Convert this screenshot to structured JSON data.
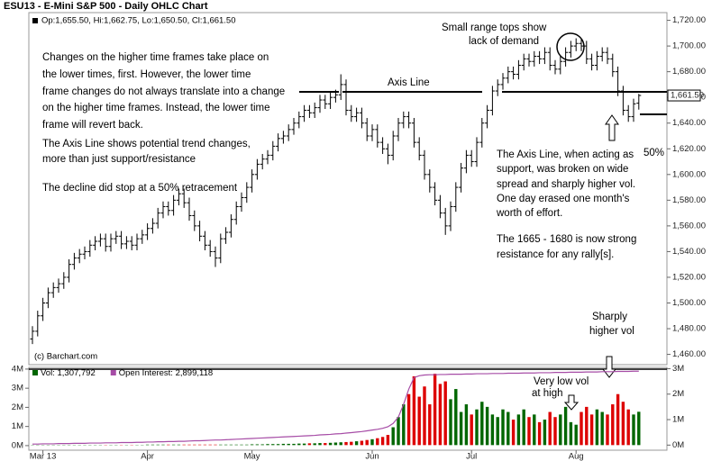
{
  "chart_data": [
    {
      "type": "ohlc",
      "title": "ESU13 - E-Mini S&P 500 - Daily OHLC Chart",
      "legend": "Op:1,655.50, Hi:1,662.75, Lo:1,650.50, Cl:1,661.50",
      "source": "(c) Barchart.com",
      "last_price_label": "1,661.50",
      "color": "#000000",
      "grid": false,
      "categories": [
        null,
        null,
        "Mar 13",
        null,
        null,
        null,
        null,
        null,
        null,
        null,
        null,
        null,
        null,
        null,
        null,
        null,
        null,
        null,
        null,
        null,
        null,
        null,
        "Apr",
        null,
        null,
        null,
        null,
        null,
        null,
        null,
        null,
        null,
        null,
        null,
        null,
        null,
        null,
        null,
        null,
        null,
        null,
        null,
        "May",
        null,
        null,
        null,
        null,
        null,
        null,
        null,
        null,
        null,
        null,
        null,
        null,
        null,
        null,
        null,
        null,
        null,
        null,
        null,
        null,
        null,
        null,
        "Jun",
        null,
        null,
        null,
        null,
        null,
        null,
        null,
        null,
        null,
        null,
        null,
        null,
        null,
        null,
        null,
        null,
        null,
        null,
        "Jul",
        null,
        null,
        null,
        null,
        null,
        null,
        null,
        null,
        null,
        null,
        null,
        null,
        null,
        null,
        null,
        null,
        null,
        null,
        null,
        "Aug",
        null,
        null,
        null,
        null,
        null,
        null,
        null,
        null,
        null,
        null,
        null,
        null,
        null,
        null
      ],
      "ohlc": [
        [
          1472,
          1482,
          1468,
          1478
        ],
        [
          1478,
          1494,
          1474,
          1490
        ],
        [
          1490,
          1504,
          1486,
          1500
        ],
        [
          1500,
          1512,
          1496,
          1508
        ],
        [
          1508,
          1516,
          1504,
          1512
        ],
        [
          1512,
          1519,
          1508,
          1515
        ],
        [
          1515,
          1524,
          1511,
          1520
        ],
        [
          1520,
          1534,
          1516,
          1530
        ],
        [
          1530,
          1539,
          1526,
          1535
        ],
        [
          1535,
          1542,
          1531,
          1538
        ],
        [
          1538,
          1544,
          1534,
          1540
        ],
        [
          1540,
          1549,
          1536,
          1545
        ],
        [
          1545,
          1552,
          1541,
          1548
        ],
        [
          1548,
          1554,
          1544,
          1550
        ],
        [
          1550,
          1554,
          1540,
          1544
        ],
        [
          1544,
          1554,
          1540,
          1550
        ],
        [
          1550,
          1556,
          1546,
          1552
        ],
        [
          1552,
          1556,
          1542,
          1546
        ],
        [
          1546,
          1552,
          1542,
          1548
        ],
        [
          1548,
          1552,
          1541,
          1545
        ],
        [
          1545,
          1554,
          1541,
          1550
        ],
        [
          1550,
          1557,
          1546,
          1553
        ],
        [
          1553,
          1562,
          1549,
          1558
        ],
        [
          1558,
          1566,
          1554,
          1562
        ],
        [
          1562,
          1574,
          1558,
          1570
        ],
        [
          1570,
          1579,
          1566,
          1575
        ],
        [
          1575,
          1579,
          1568,
          1572
        ],
        [
          1572,
          1584,
          1568,
          1580
        ],
        [
          1580,
          1589,
          1576,
          1585
        ],
        [
          1585,
          1589,
          1574,
          1578
        ],
        [
          1578,
          1582,
          1564,
          1568
        ],
        [
          1568,
          1572,
          1556,
          1560
        ],
        [
          1560,
          1564,
          1548,
          1552
        ],
        [
          1552,
          1556,
          1541,
          1545
        ],
        [
          1545,
          1549,
          1536,
          1540
        ],
        [
          1540,
          1544,
          1528,
          1535
        ],
        [
          1535,
          1554,
          1531,
          1550
        ],
        [
          1550,
          1559,
          1546,
          1555
        ],
        [
          1555,
          1569,
          1551,
          1565
        ],
        [
          1565,
          1579,
          1561,
          1575
        ],
        [
          1575,
          1586,
          1571,
          1582
        ],
        [
          1582,
          1594,
          1578,
          1590
        ],
        [
          1590,
          1604,
          1586,
          1600
        ],
        [
          1600,
          1612,
          1596,
          1608
        ],
        [
          1608,
          1616,
          1604,
          1612
        ],
        [
          1612,
          1619,
          1608,
          1615
        ],
        [
          1615,
          1626,
          1611,
          1622
        ],
        [
          1622,
          1632,
          1618,
          1628
        ],
        [
          1628,
          1634,
          1624,
          1630
        ],
        [
          1630,
          1639,
          1626,
          1635
        ],
        [
          1635,
          1644,
          1631,
          1640
        ],
        [
          1640,
          1649,
          1636,
          1645
        ],
        [
          1645,
          1654,
          1641,
          1650
        ],
        [
          1650,
          1654,
          1644,
          1648
        ],
        [
          1648,
          1656,
          1644,
          1652
        ],
        [
          1652,
          1662,
          1648,
          1658
        ],
        [
          1658,
          1662,
          1651,
          1655
        ],
        [
          1655,
          1664,
          1651,
          1660
        ],
        [
          1660,
          1666,
          1656,
          1662
        ],
        [
          1662,
          1678,
          1658,
          1670
        ],
        [
          1670,
          1674,
          1646,
          1650
        ],
        [
          1650,
          1654,
          1641,
          1645
        ],
        [
          1645,
          1652,
          1641,
          1648
        ],
        [
          1648,
          1652,
          1636,
          1640
        ],
        [
          1640,
          1644,
          1626,
          1630
        ],
        [
          1630,
          1639,
          1626,
          1635
        ],
        [
          1635,
          1639,
          1621,
          1625
        ],
        [
          1625,
          1629,
          1616,
          1620
        ],
        [
          1620,
          1624,
          1608,
          1615
        ],
        [
          1615,
          1634,
          1611,
          1630
        ],
        [
          1630,
          1644,
          1626,
          1640
        ],
        [
          1640,
          1649,
          1636,
          1645
        ],
        [
          1645,
          1649,
          1636,
          1640
        ],
        [
          1640,
          1644,
          1621,
          1625
        ],
        [
          1625,
          1629,
          1611,
          1615
        ],
        [
          1615,
          1619,
          1596,
          1600
        ],
        [
          1600,
          1604,
          1586,
          1590
        ],
        [
          1590,
          1594,
          1576,
          1580
        ],
        [
          1580,
          1584,
          1566,
          1570
        ],
        [
          1570,
          1574,
          1553,
          1560
        ],
        [
          1560,
          1579,
          1556,
          1575
        ],
        [
          1575,
          1594,
          1571,
          1590
        ],
        [
          1590,
          1609,
          1586,
          1605
        ],
        [
          1605,
          1619,
          1601,
          1615
        ],
        [
          1615,
          1619,
          1606,
          1610
        ],
        [
          1610,
          1629,
          1606,
          1625
        ],
        [
          1625,
          1644,
          1621,
          1640
        ],
        [
          1640,
          1654,
          1636,
          1650
        ],
        [
          1650,
          1669,
          1646,
          1665
        ],
        [
          1665,
          1674,
          1661,
          1670
        ],
        [
          1670,
          1679,
          1666,
          1675
        ],
        [
          1675,
          1684,
          1671,
          1680
        ],
        [
          1680,
          1684,
          1674,
          1678
        ],
        [
          1678,
          1689,
          1674,
          1685
        ],
        [
          1685,
          1694,
          1681,
          1690
        ],
        [
          1690,
          1694,
          1684,
          1688
        ],
        [
          1688,
          1696,
          1684,
          1692
        ],
        [
          1692,
          1696,
          1686,
          1690
        ],
        [
          1690,
          1699,
          1686,
          1695
        ],
        [
          1695,
          1699,
          1681,
          1685
        ],
        [
          1685,
          1689,
          1678,
          1682
        ],
        [
          1682,
          1692,
          1678,
          1688
        ],
        [
          1688,
          1699,
          1684,
          1695
        ],
        [
          1695,
          1704,
          1691,
          1700
        ],
        [
          1700,
          1706,
          1696,
          1702
        ],
        [
          1702,
          1706,
          1696,
          1700
        ],
        [
          1700,
          1704,
          1686,
          1690
        ],
        [
          1690,
          1694,
          1681,
          1685
        ],
        [
          1685,
          1696,
          1681,
          1692
        ],
        [
          1692,
          1699,
          1688,
          1695
        ],
        [
          1695,
          1699,
          1686,
          1690
        ],
        [
          1690,
          1694,
          1676,
          1680
        ],
        [
          1680,
          1684,
          1661,
          1665
        ],
        [
          1665,
          1669,
          1646,
          1650
        ],
        [
          1650,
          1654,
          1641,
          1645
        ],
        [
          1645,
          1659,
          1641,
          1655
        ],
        [
          1655.5,
          1662.75,
          1650.5,
          1661.5
        ]
      ],
      "ylim": [
        1452,
        1726
      ],
      "yticks": [
        {
          "value": 1460,
          "label": "1,460.00"
        },
        {
          "value": 1480,
          "label": "1,480.00"
        },
        {
          "value": 1500,
          "label": "1,500.00"
        },
        {
          "value": 1520,
          "label": "1,520.00"
        },
        {
          "value": 1540,
          "label": "1,540.00"
        },
        {
          "value": 1560,
          "label": "1,560.00"
        },
        {
          "value": 1580,
          "label": "1,580.00"
        },
        {
          "value": 1600,
          "label": "1,600.00"
        },
        {
          "value": 1620,
          "label": "1,620.00"
        },
        {
          "value": 1640,
          "label": "1,640.00"
        },
        {
          "value": 1660,
          "label": "1,660.00"
        },
        {
          "value": 1680,
          "label": "1,680.00"
        },
        {
          "value": 1700,
          "label": "1,700.00"
        },
        {
          "value": 1720,
          "label": "1,720.00"
        }
      ],
      "annotations": [
        "Small range tops show",
        "lack of demand",
        "Changes on the higher time frames take place on",
        "the lower times, first.  However, the lower time",
        "frame changes do not always translate into a change",
        "on the higher time frames.  Instead, the lower time",
        "frame will revert back.",
        "The Axis Line shows potential trend changes,",
        "more than just support/resistance",
        "The decline did stop at a 50% retracement",
        "Axis Line",
        "50%",
        "The Axis Line, when acting as",
        "support, was broken on wide",
        "spread and sharply higher vol.",
        "One day erased one month's",
        "worth of effort.",
        "The 1665 - 1680 is now strong",
        "resistance for any rally[s].",
        "Sharply",
        "higher vol"
      ]
    },
    {
      "type": "bar",
      "up_color": "#006600",
      "down_color": "#dd0000",
      "series": [
        {
          "name": "Vol: 1,307,792",
          "color": "#006600",
          "values": [
            0.01,
            0.01,
            0.01,
            0.01,
            0.01,
            0.01,
            0.01,
            0.01,
            0.01,
            0.01,
            0.01,
            0.01,
            0.01,
            0.01,
            0.01,
            0.01,
            0.01,
            0.01,
            0.01,
            0.01,
            0.01,
            0.01,
            0.02,
            0.02,
            0.02,
            0.02,
            0.02,
            0.02,
            0.02,
            0.02,
            0.02,
            0.02,
            0.02,
            0.02,
            0.02,
            0.02,
            0.02,
            0.02,
            0.02,
            0.02,
            0.02,
            0.02,
            0.03,
            0.03,
            0.03,
            0.04,
            0.04,
            0.04,
            0.05,
            0.05,
            0.05,
            0.06,
            0.06,
            0.07,
            0.07,
            0.08,
            0.08,
            0.09,
            0.1,
            0.11,
            0.12,
            0.13,
            0.15,
            0.17,
            0.2,
            0.23,
            0.27,
            0.32,
            0.4,
            0.7,
            1.1,
            1.6,
            2.0,
            2.7,
            1.9,
            2.3,
            1.6,
            2.8,
            2.4,
            2.5,
            1.8,
            2.2,
            1.3,
            1.6,
            1.2,
            1.4,
            1.7,
            1.5,
            1.2,
            1.1,
            1.4,
            1.3,
            1.0,
            1.2,
            1.4,
            1.1,
            1.2,
            0.9,
            1.0,
            1.3,
            1.1,
            1.2,
            1.5,
            0.9,
            0.8,
            1.3,
            1.5,
            1.2,
            1.4,
            1.3,
            1.2,
            1.6,
            2.0,
            1.7,
            1.4,
            1.2,
            1.307792
          ]
        },
        {
          "name": "Open Interest: 2,899,118",
          "color": "#a64ca6",
          "values": [
            0.04,
            0.04,
            0.05,
            0.05,
            0.05,
            0.06,
            0.06,
            0.06,
            0.07,
            0.07,
            0.07,
            0.08,
            0.08,
            0.08,
            0.09,
            0.09,
            0.09,
            0.1,
            0.1,
            0.1,
            0.11,
            0.11,
            0.12,
            0.12,
            0.13,
            0.13,
            0.14,
            0.14,
            0.15,
            0.15,
            0.16,
            0.17,
            0.17,
            0.18,
            0.19,
            0.2,
            0.2,
            0.21,
            0.22,
            0.23,
            0.24,
            0.25,
            0.26,
            0.27,
            0.28,
            0.29,
            0.3,
            0.31,
            0.32,
            0.33,
            0.34,
            0.35,
            0.36,
            0.37,
            0.38,
            0.4,
            0.41,
            0.42,
            0.44,
            0.45,
            0.47,
            0.49,
            0.51,
            0.53,
            0.56,
            0.59,
            0.62,
            0.66,
            0.72,
            0.85,
            1.1,
            1.6,
            2.2,
            2.65,
            2.72,
            2.75,
            2.76,
            2.76,
            2.77,
            2.77,
            2.78,
            2.78,
            2.78,
            2.79,
            2.79,
            2.8,
            2.8,
            2.8,
            2.81,
            2.81,
            2.81,
            2.82,
            2.82,
            2.82,
            2.83,
            2.83,
            2.83,
            2.84,
            2.84,
            2.84,
            2.85,
            2.85,
            2.85,
            2.86,
            2.86,
            2.86,
            2.87,
            2.87,
            2.87,
            2.88,
            2.88,
            2.88,
            2.89,
            2.89,
            2.89,
            2.9,
            2.9
          ]
        }
      ],
      "ylim": [
        -0.2,
        3.05
      ],
      "yticks": [
        {
          "value": 0,
          "label": "0M"
        },
        {
          "value": 1,
          "label": "1M"
        },
        {
          "value": 2,
          "label": "2M"
        },
        {
          "value": 3,
          "label": "3M"
        }
      ],
      "y2lim": [
        -0.24,
        4.09
      ],
      "y2ticks": [
        {
          "value": 0,
          "label": "0M"
        },
        {
          "value": 1,
          "label": "1M"
        },
        {
          "value": 2,
          "label": "2M"
        },
        {
          "value": 3,
          "label": "3M"
        },
        {
          "value": 4,
          "label": "4M"
        }
      ],
      "annotations": [
        "Very low vol",
        "at high"
      ]
    }
  ]
}
